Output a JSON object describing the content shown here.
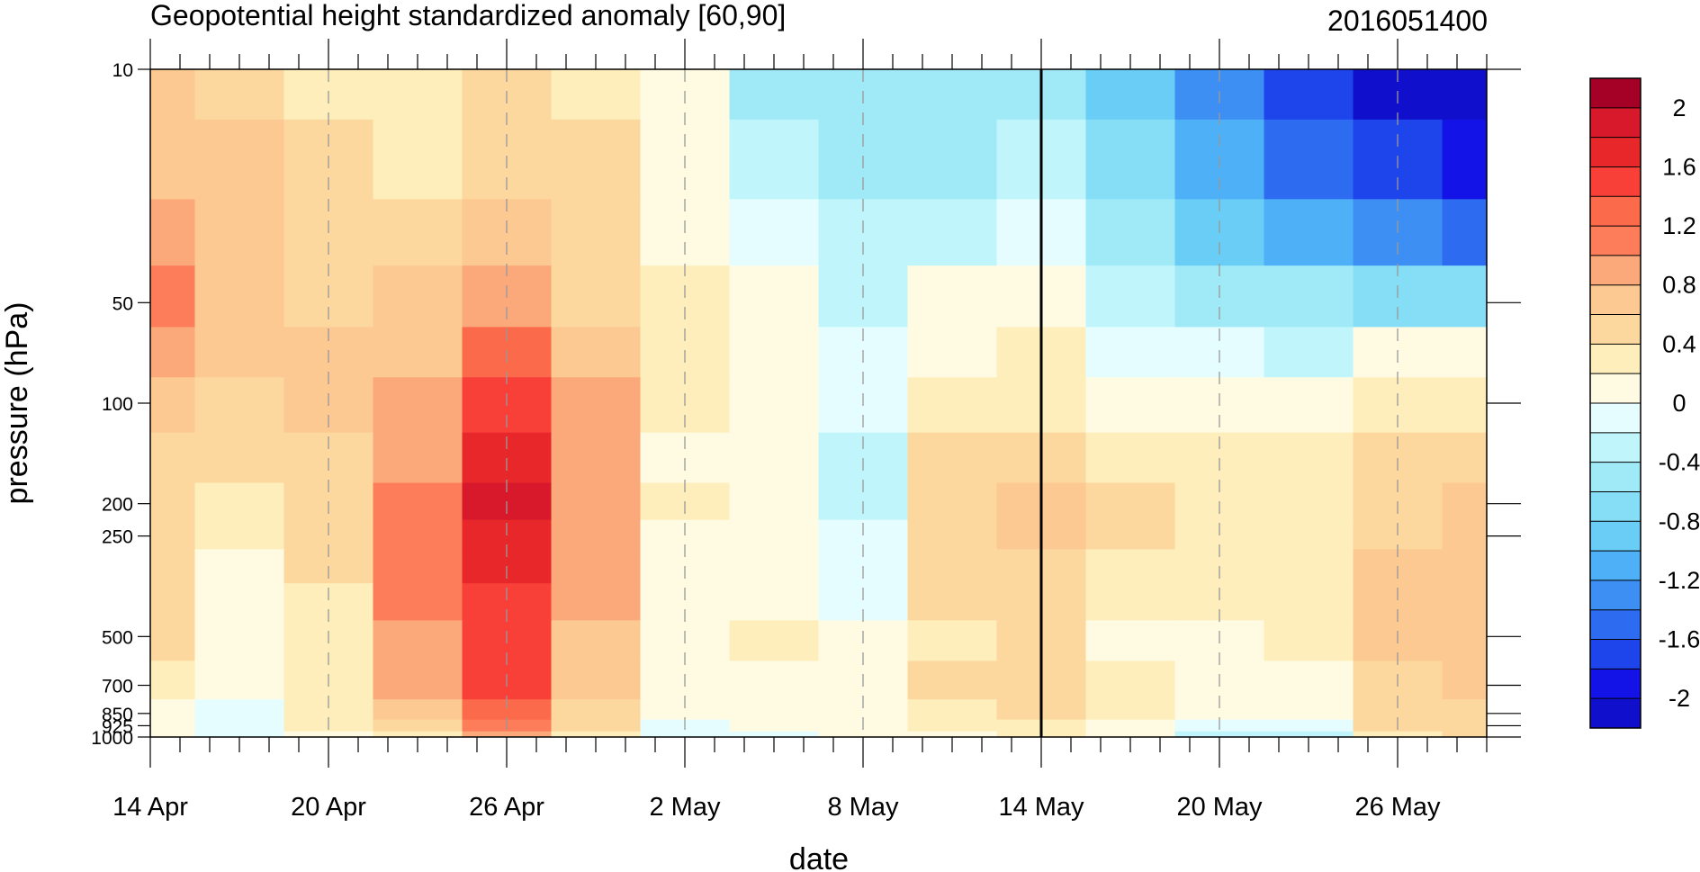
{
  "chart_data": {
    "type": "heatmap",
    "subtype": "filled-contour",
    "title": "Geopotential height standardized anomaly [60,90]",
    "date_stamp": "2016051400",
    "xlabel": "date",
    "ylabel": "pressure (hPa)",
    "x_tick_labels": [
      "14 Apr",
      "20 Apr",
      "26 Apr",
      "2 May",
      "8 May",
      "14 May",
      "20 May",
      "26 May"
    ],
    "x_tick_days": [
      0,
      6,
      12,
      18,
      24,
      30,
      36,
      42
    ],
    "x_range_days": [
      0,
      45
    ],
    "y_tick_labels": [
      "10",
      "50",
      "100",
      "200",
      "250",
      "500",
      "700",
      "850",
      "925",
      "1000"
    ],
    "y_tick_values": [
      10,
      50,
      100,
      200,
      250,
      500,
      700,
      850,
      925,
      1000
    ],
    "y_range_hPa": [
      10,
      1000
    ],
    "y_scale": "log",
    "y_reversed": true,
    "vertical_reference_line_day": 30,
    "minor_x_ticks": "daily",
    "grid": "dashed vertical lines at major x ticks",
    "colorbar": {
      "labels": [
        "2",
        "1.6",
        "1.2",
        "0.8",
        "0.4",
        "0",
        "-0.4",
        "-0.8",
        "-1.2",
        "-1.6",
        "-2"
      ],
      "levels": [
        2.2,
        2.0,
        1.8,
        1.6,
        1.4,
        1.2,
        1.0,
        0.8,
        0.6,
        0.4,
        0.2,
        0.0,
        -0.2,
        -0.4,
        -0.6,
        -0.8,
        -1.0,
        -1.2,
        -1.4,
        -1.6,
        -1.8,
        -2.0,
        -2.2
      ],
      "colors": [
        "#a50026",
        "#d7192b",
        "#e8272b",
        "#f84039",
        "#fb6a4a",
        "#fd7d5a",
        "#fba87a",
        "#fcc993",
        "#fcd89e",
        "#fdeebb",
        "#fffbe3",
        "#e6fdff",
        "#c0f5fb",
        "#a0eaf7",
        "#86def6",
        "#6acdf5",
        "#4eb0f6",
        "#3e8ff3",
        "#2d6bf0",
        "#1e44ec",
        "#1313e7",
        "#1010cc"
      ]
    },
    "cells": {
      "x_days": [
        0,
        3,
        6,
        9,
        12,
        15,
        18,
        21,
        24,
        27,
        30,
        33,
        36,
        39,
        42,
        45
      ],
      "p_levels_hPa": [
        10,
        20,
        30,
        50,
        70,
        100,
        150,
        200,
        250,
        300,
        400,
        500,
        700,
        850,
        925,
        1000
      ],
      "values": [
        [
          0.7,
          0.6,
          0.4,
          0.3,
          0.5,
          0.4,
          0.1,
          -0.4,
          -0.4,
          -0.4,
          -0.4,
          -0.8,
          -1.2,
          -1.6,
          -2.0,
          -2.2
        ],
        [
          0.7,
          0.7,
          0.5,
          0.4,
          0.6,
          0.5,
          0.2,
          -0.3,
          -0.4,
          -0.4,
          -0.3,
          -0.7,
          -1.0,
          -1.4,
          -1.6,
          -1.8
        ],
        [
          0.9,
          0.8,
          0.6,
          0.5,
          0.7,
          0.5,
          0.2,
          -0.1,
          -0.3,
          -0.2,
          -0.1,
          -0.5,
          -0.8,
          -1.0,
          -1.2,
          -1.4
        ],
        [
          1.1,
          0.8,
          0.6,
          0.7,
          1.0,
          0.6,
          0.3,
          0.1,
          -0.2,
          0.1,
          0.2,
          -0.2,
          -0.4,
          -0.5,
          -0.6,
          -0.6
        ],
        [
          0.9,
          0.7,
          0.7,
          0.8,
          1.3,
          0.7,
          0.3,
          0.1,
          -0.1,
          0.2,
          0.3,
          0.0,
          -0.1,
          -0.2,
          0.1,
          0.2
        ],
        [
          0.8,
          0.6,
          0.8,
          1.0,
          1.5,
          0.9,
          0.3,
          0.1,
          -0.1,
          0.3,
          0.4,
          0.2,
          0.1,
          0.2,
          0.3,
          0.4
        ],
        [
          0.6,
          0.5,
          0.6,
          1.0,
          1.7,
          1.0,
          0.2,
          0.1,
          -0.2,
          0.5,
          0.6,
          0.4,
          0.3,
          0.3,
          0.5,
          0.6
        ],
        [
          0.5,
          0.4,
          0.6,
          1.2,
          1.9,
          1.0,
          0.3,
          0.1,
          -0.2,
          0.6,
          0.7,
          0.5,
          0.3,
          0.4,
          0.6,
          0.7
        ],
        [
          0.5,
          0.3,
          0.5,
          1.2,
          1.8,
          1.0,
          0.2,
          0.1,
          -0.1,
          0.6,
          0.7,
          0.5,
          0.3,
          0.4,
          0.6,
          0.7
        ],
        [
          0.6,
          0.2,
          0.5,
          1.2,
          1.7,
          1.0,
          0.2,
          0.1,
          -0.1,
          0.6,
          0.6,
          0.4,
          0.3,
          0.4,
          0.7,
          0.7
        ],
        [
          0.6,
          0.1,
          0.4,
          1.1,
          1.6,
          0.9,
          0.2,
          0.1,
          0.0,
          0.5,
          0.6,
          0.3,
          0.3,
          0.3,
          0.7,
          0.7
        ],
        [
          0.5,
          0.1,
          0.4,
          1.0,
          1.6,
          0.8,
          0.2,
          0.3,
          0.1,
          0.4,
          0.6,
          0.2,
          0.1,
          0.3,
          0.7,
          0.7
        ],
        [
          0.4,
          0.1,
          0.3,
          0.9,
          1.5,
          0.7,
          0.2,
          0.1,
          0.2,
          0.5,
          0.6,
          0.3,
          0.2,
          0.2,
          0.6,
          0.7
        ],
        [
          0.2,
          0.0,
          0.3,
          0.8,
          1.4,
          0.6,
          0.1,
          0.1,
          0.2,
          0.4,
          0.5,
          0.3,
          0.1,
          0.2,
          0.6,
          0.6
        ],
        [
          0.1,
          -0.1,
          0.3,
          0.6,
          1.2,
          0.5,
          -0.1,
          0.1,
          0.1,
          0.3,
          0.4,
          0.2,
          -0.1,
          0.0,
          0.5,
          0.6
        ],
        [
          0.1,
          -0.1,
          0.2,
          0.4,
          1.0,
          0.4,
          -0.1,
          0.0,
          0.1,
          0.2,
          0.3,
          0.1,
          -0.2,
          -0.2,
          0.4,
          0.5
        ]
      ]
    }
  }
}
